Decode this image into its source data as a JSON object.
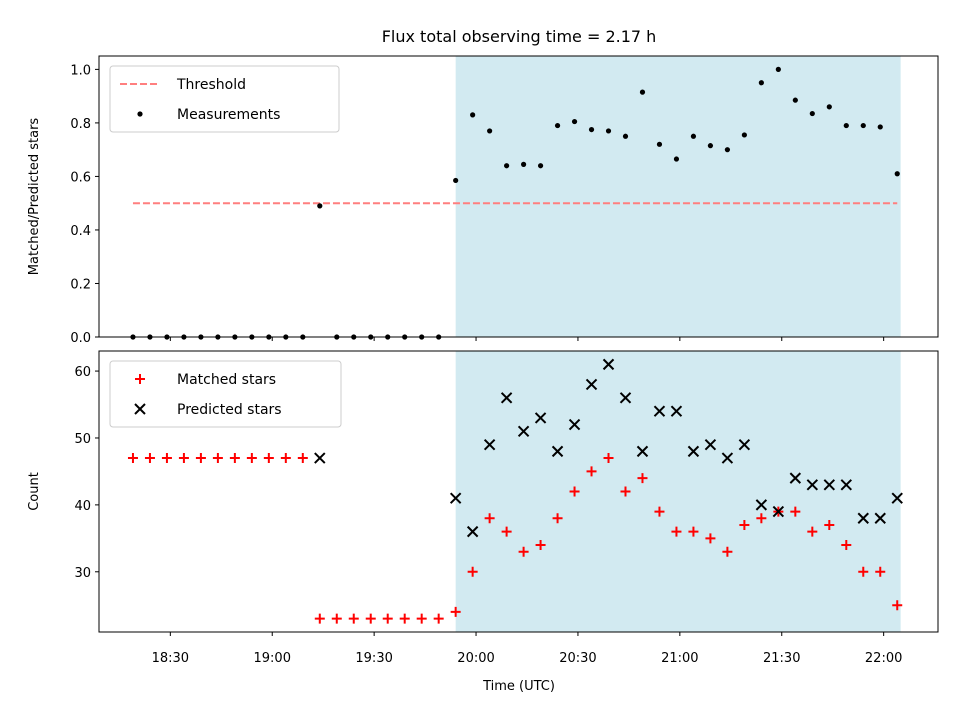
{
  "chart_data": {
    "title": "Flux total observing time = 2.17 h",
    "xlabel": "Time (UTC)",
    "x_ticks": [
      {
        "t": "18:30",
        "label": "18:30"
      },
      {
        "t": "19:00",
        "label": "19:00"
      },
      {
        "t": "19:30",
        "label": "19:30"
      },
      {
        "t": "20:00",
        "label": "20:00"
      },
      {
        "t": "20:30",
        "label": "20:30"
      },
      {
        "t": "21:00",
        "label": "21:00"
      },
      {
        "t": "21:30",
        "label": "21:30"
      },
      {
        "t": "22:00",
        "label": "22:00"
      }
    ],
    "xlim": [
      "18:09",
      "22:16"
    ],
    "observing_window": [
      "19:54",
      "22:05"
    ],
    "shade_color": "#add8e6",
    "panels": [
      {
        "type": "scatter",
        "ylabel": "Matched/Predicted stars",
        "ylim": [
          0,
          1.05
        ],
        "yticks": [
          "0.0",
          "0.2",
          "0.4",
          "0.6",
          "0.8",
          "1.0"
        ],
        "legend_position": "upper-left",
        "threshold": {
          "label": "Threshold",
          "value": 0.5,
          "x": [
            "18:19",
            "22:04"
          ],
          "color": "#ff7f7f"
        },
        "series": [
          {
            "name": "Measurements",
            "marker": "dot",
            "color": "#000000",
            "points": [
              [
                "18:19",
                0
              ],
              [
                "18:24",
                0
              ],
              [
                "18:29",
                0
              ],
              [
                "18:34",
                0
              ],
              [
                "18:39",
                0
              ],
              [
                "18:44",
                0
              ],
              [
                "18:49",
                0
              ],
              [
                "18:54",
                0
              ],
              [
                "18:59",
                0
              ],
              [
                "19:04",
                0
              ],
              [
                "19:09",
                0
              ],
              [
                "19:14",
                0.49
              ],
              [
                "19:19",
                0
              ],
              [
                "19:24",
                0
              ],
              [
                "19:29",
                0
              ],
              [
                "19:34",
                0
              ],
              [
                "19:39",
                0
              ],
              [
                "19:44",
                0
              ],
              [
                "19:49",
                0
              ],
              [
                "19:54",
                0.585
              ],
              [
                "19:59",
                0.83
              ],
              [
                "20:04",
                0.77
              ],
              [
                "20:09",
                0.64
              ],
              [
                "20:14",
                0.645
              ],
              [
                "20:19",
                0.64
              ],
              [
                "20:24",
                0.79
              ],
              [
                "20:29",
                0.805
              ],
              [
                "20:34",
                0.775
              ],
              [
                "20:39",
                0.77
              ],
              [
                "20:44",
                0.75
              ],
              [
                "20:49",
                0.915
              ],
              [
                "20:54",
                0.72
              ],
              [
                "20:59",
                0.665
              ],
              [
                "21:04",
                0.75
              ],
              [
                "21:09",
                0.715
              ],
              [
                "21:14",
                0.7
              ],
              [
                "21:19",
                0.755
              ],
              [
                "21:24",
                0.95
              ],
              [
                "21:29",
                1.0
              ],
              [
                "21:34",
                0.885
              ],
              [
                "21:39",
                0.835
              ],
              [
                "21:44",
                0.86
              ],
              [
                "21:49",
                0.79
              ],
              [
                "21:54",
                0.79
              ],
              [
                "21:59",
                0.785
              ],
              [
                "22:04",
                0.61
              ]
            ]
          }
        ]
      },
      {
        "type": "scatter",
        "ylabel": "Count",
        "ylim": [
          21,
          63
        ],
        "yticks": [
          "30",
          "40",
          "50",
          "60"
        ],
        "legend_position": "upper-left",
        "series": [
          {
            "name": "Matched stars",
            "marker": "plus",
            "color": "#ff0000",
            "points": [
              [
                "18:19",
                47
              ],
              [
                "18:24",
                47
              ],
              [
                "18:29",
                47
              ],
              [
                "18:34",
                47
              ],
              [
                "18:39",
                47
              ],
              [
                "18:44",
                47
              ],
              [
                "18:49",
                47
              ],
              [
                "18:54",
                47
              ],
              [
                "18:59",
                47
              ],
              [
                "19:04",
                47
              ],
              [
                "19:09",
                47
              ],
              [
                "19:14",
                23
              ],
              [
                "19:19",
                23
              ],
              [
                "19:24",
                23
              ],
              [
                "19:29",
                23
              ],
              [
                "19:34",
                23
              ],
              [
                "19:39",
                23
              ],
              [
                "19:44",
                23
              ],
              [
                "19:49",
                23
              ],
              [
                "19:54",
                24
              ],
              [
                "19:59",
                30
              ],
              [
                "20:04",
                38
              ],
              [
                "20:09",
                36
              ],
              [
                "20:14",
                33
              ],
              [
                "20:19",
                34
              ],
              [
                "20:24",
                38
              ],
              [
                "20:29",
                42
              ],
              [
                "20:34",
                45
              ],
              [
                "20:39",
                47
              ],
              [
                "20:44",
                42
              ],
              [
                "20:49",
                44
              ],
              [
                "20:54",
                39
              ],
              [
                "20:59",
                36
              ],
              [
                "21:04",
                36
              ],
              [
                "21:09",
                35
              ],
              [
                "21:14",
                33
              ],
              [
                "21:19",
                37
              ],
              [
                "21:24",
                38
              ],
              [
                "21:29",
                39
              ],
              [
                "21:34",
                39
              ],
              [
                "21:39",
                36
              ],
              [
                "21:44",
                37
              ],
              [
                "21:49",
                34
              ],
              [
                "21:54",
                30
              ],
              [
                "21:59",
                30
              ],
              [
                "22:04",
                25
              ]
            ]
          },
          {
            "name": "Predicted stars",
            "marker": "x",
            "color": "#000000",
            "points": [
              [
                "19:14",
                47
              ],
              [
                "19:54",
                41
              ],
              [
                "19:59",
                36
              ],
              [
                "20:04",
                49
              ],
              [
                "20:09",
                56
              ],
              [
                "20:14",
                51
              ],
              [
                "20:19",
                53
              ],
              [
                "20:24",
                48
              ],
              [
                "20:29",
                52
              ],
              [
                "20:34",
                58
              ],
              [
                "20:39",
                61
              ],
              [
                "20:44",
                56
              ],
              [
                "20:49",
                48
              ],
              [
                "20:54",
                54
              ],
              [
                "20:59",
                54
              ],
              [
                "21:04",
                48
              ],
              [
                "21:09",
                49
              ],
              [
                "21:14",
                47
              ],
              [
                "21:19",
                49
              ],
              [
                "21:24",
                40
              ],
              [
                "21:29",
                39
              ],
              [
                "21:34",
                44
              ],
              [
                "21:39",
                43
              ],
              [
                "21:44",
                43
              ],
              [
                "21:49",
                43
              ],
              [
                "21:54",
                38
              ],
              [
                "21:59",
                38
              ],
              [
                "22:04",
                41
              ]
            ]
          }
        ]
      }
    ]
  }
}
